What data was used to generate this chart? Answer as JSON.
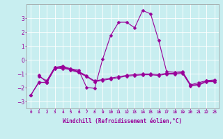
{
  "background_color": "#c8eef0",
  "grid_color": "#ffffff",
  "line_color": "#990099",
  "marker_size": 2.5,
  "line_width": 0.8,
  "xlabel": "Windchill (Refroidissement éolien,°C)",
  "xlabel_fontsize": 5.5,
  "ylim": [
    -3.5,
    4.0
  ],
  "yticks": [
    -3,
    -2,
    -1,
    0,
    1,
    2,
    3
  ],
  "line1_y": [
    null,
    -1.2,
    -1.5,
    -0.55,
    -0.65,
    -0.65,
    -0.75,
    -2.0,
    -2.05,
    0.05,
    1.75,
    2.7,
    2.7,
    2.3,
    3.55,
    3.3,
    1.4,
    -0.85,
    -0.9,
    -0.85,
    -1.8,
    -1.65,
    -1.5,
    -1.45
  ],
  "line2_y": [
    -2.55,
    -1.65,
    -1.6,
    -0.55,
    -0.45,
    -0.65,
    -0.85,
    -1.15,
    null,
    null,
    null,
    null,
    null,
    null,
    null,
    null,
    null,
    null,
    null,
    null,
    null,
    null,
    null,
    null
  ],
  "line3_y": [
    -2.55,
    -1.6,
    -1.65,
    -0.6,
    -0.5,
    -0.7,
    -0.88,
    -1.18,
    -1.52,
    -1.42,
    -1.32,
    -1.22,
    -1.12,
    -1.07,
    -1.02,
    -1.02,
    -1.07,
    -0.97,
    -0.97,
    -0.92,
    -1.82,
    -1.77,
    -1.52,
    -1.52
  ],
  "line4_y": [
    null,
    -1.08,
    -1.65,
    -0.65,
    -0.55,
    -0.75,
    -0.92,
    -1.22,
    -1.58,
    -1.48,
    -1.38,
    -1.28,
    -1.18,
    -1.13,
    -1.08,
    -1.08,
    -1.13,
    -1.03,
    -1.03,
    -0.98,
    -1.88,
    -1.83,
    -1.58,
    -1.58
  ]
}
